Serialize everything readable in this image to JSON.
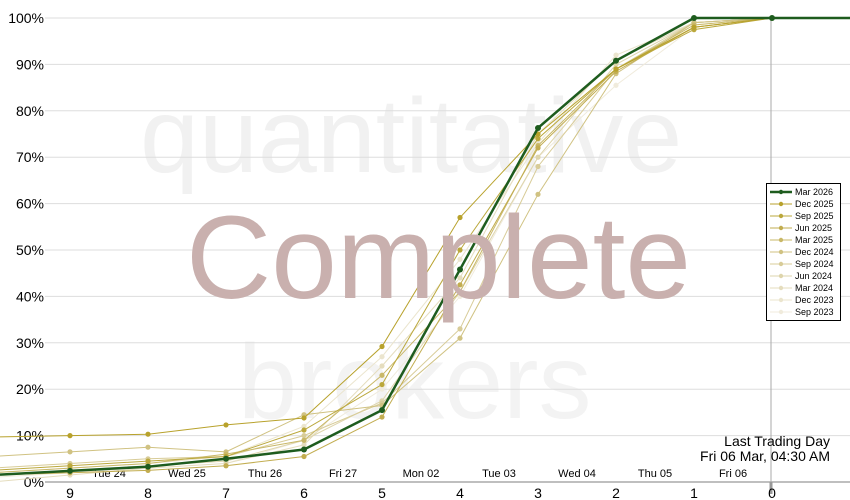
{
  "chart_data": {
    "type": "line",
    "x": [
      9,
      8,
      7,
      6,
      5,
      4,
      3,
      2,
      1,
      0
    ],
    "x_date_labels": [
      "Tue 24",
      "Wed 25",
      "Thu 26",
      "Fri 27",
      "Mon 02",
      "Tue 03",
      "Wed 04",
      "Thu 05",
      "Fri 06"
    ],
    "ylim": [
      0,
      100
    ],
    "yticks": [
      "0%",
      "10%",
      "20%",
      "30%",
      "40%",
      "50%",
      "60%",
      "70%",
      "80%",
      "90%",
      "100%"
    ],
    "grid": true,
    "legend": "right",
    "series": [
      {
        "name": "Mar 2026",
        "color": "#1e5c1e",
        "values": [
          2.4,
          3.3,
          5,
          7,
          15.5,
          45.8,
          76.3,
          90.8,
          100,
          100
        ]
      },
      {
        "name": "Dec 2025",
        "color": "#b8a22c",
        "values": [
          10,
          10.3,
          12.3,
          13.8,
          29.2,
          57,
          75,
          89,
          98,
          100
        ]
      },
      {
        "name": "Sep 2025",
        "color": "#bba83c",
        "values": [
          3.5,
          4.5,
          5.5,
          11.2,
          21,
          50,
          74,
          89,
          97.5,
          100
        ]
      },
      {
        "name": "Jun 2025",
        "color": "#c2ad50",
        "values": [
          2,
          2.5,
          3.5,
          5.5,
          14,
          42.5,
          72,
          88.5,
          98,
          100
        ]
      },
      {
        "name": "Mar 2025",
        "color": "#c9b868",
        "values": [
          3,
          4,
          6,
          9,
          23,
          41,
          72.5,
          89,
          98.5,
          100
        ]
      },
      {
        "name": "Dec 2024",
        "color": "#d0c282",
        "values": [
          6.5,
          7.5,
          6.5,
          14.5,
          16.5,
          31,
          62,
          88,
          99,
          100
        ]
      },
      {
        "name": "Sep 2024",
        "color": "#d8cc98",
        "values": [
          4,
          5,
          5.5,
          10,
          17,
          33,
          68,
          89,
          99,
          100
        ]
      },
      {
        "name": "Jun 2024",
        "color": "#ded5ac",
        "values": [
          2.5,
          3.5,
          4.5,
          9,
          17.5,
          41,
          70,
          90,
          99,
          100
        ]
      },
      {
        "name": "Mar 2024",
        "color": "#e5ddbe",
        "values": [
          1.5,
          3,
          4,
          8,
          25,
          44,
          75,
          91,
          99,
          100
        ]
      },
      {
        "name": "Dec 2023",
        "color": "#ebe5ce",
        "values": [
          3,
          4,
          5.5,
          12,
          27,
          48,
          73,
          92,
          99,
          100
        ]
      },
      {
        "name": "Sep 2023",
        "color": "#f0ebdc",
        "values": [
          2,
          3,
          4,
          9,
          20,
          40,
          70,
          85.5,
          98,
          100
        ]
      }
    ]
  },
  "watermark": {
    "line1": "quantitative",
    "line2": "Complete",
    "line3": "brokers"
  },
  "last_trading_day": {
    "label": "Last Trading Day",
    "value": "Fri 06 Mar, 04:30 AM"
  }
}
